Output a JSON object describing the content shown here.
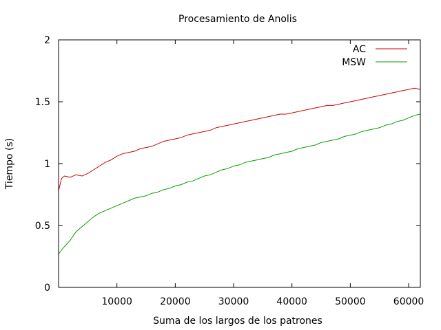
{
  "chart_data": {
    "type": "line",
    "title": "Procesamiento de Anolis",
    "xlabel": "Suma de los largos de los patrones",
    "ylabel": "Tiempo (s)",
    "xlim": [
      0,
      62000
    ],
    "ylim": [
      0,
      2
    ],
    "x_ticks": [
      10000,
      20000,
      30000,
      40000,
      50000,
      60000
    ],
    "x_tick_labels": [
      "10000",
      "20000",
      "30000",
      "40000",
      "50000",
      "60000"
    ],
    "y_ticks": [
      0,
      0.5,
      1,
      1.5,
      2
    ],
    "y_tick_labels": [
      "0",
      "0.5",
      "1",
      "1.5",
      "2"
    ],
    "grid": false,
    "legend": "top-right",
    "series": [
      {
        "name": "AC",
        "color": "#cc0000",
        "x": [
          0,
          500,
          1000,
          2000,
          3000,
          4000,
          5000,
          6000,
          7000,
          8000,
          9000,
          10000,
          11000,
          12000,
          13000,
          14000,
          15000,
          16000,
          17000,
          18000,
          19000,
          20000,
          21000,
          22000,
          23000,
          24000,
          25000,
          26000,
          27000,
          28000,
          29000,
          30000,
          31000,
          32000,
          33000,
          34000,
          35000,
          36000,
          37000,
          38000,
          39000,
          40000,
          41000,
          42000,
          43000,
          44000,
          45000,
          46000,
          47000,
          48000,
          49000,
          50000,
          51000,
          52000,
          53000,
          54000,
          55000,
          56000,
          57000,
          58000,
          59000,
          60000,
          61000,
          62000
        ],
        "values": [
          0.78,
          0.88,
          0.9,
          0.89,
          0.91,
          0.9,
          0.92,
          0.95,
          0.98,
          1.01,
          1.03,
          1.06,
          1.08,
          1.09,
          1.1,
          1.12,
          1.13,
          1.14,
          1.16,
          1.18,
          1.19,
          1.2,
          1.21,
          1.23,
          1.24,
          1.25,
          1.26,
          1.27,
          1.29,
          1.3,
          1.31,
          1.32,
          1.33,
          1.34,
          1.35,
          1.36,
          1.37,
          1.38,
          1.39,
          1.4,
          1.4,
          1.41,
          1.42,
          1.43,
          1.44,
          1.45,
          1.46,
          1.47,
          1.47,
          1.48,
          1.49,
          1.5,
          1.51,
          1.52,
          1.53,
          1.54,
          1.55,
          1.56,
          1.57,
          1.58,
          1.59,
          1.6,
          1.61,
          1.6
        ]
      },
      {
        "name": "MSW",
        "color": "#00a000",
        "x": [
          0,
          500,
          1000,
          2000,
          3000,
          4000,
          5000,
          6000,
          7000,
          8000,
          9000,
          10000,
          11000,
          12000,
          13000,
          14000,
          15000,
          16000,
          17000,
          18000,
          19000,
          20000,
          21000,
          22000,
          23000,
          24000,
          25000,
          26000,
          27000,
          28000,
          29000,
          30000,
          31000,
          32000,
          33000,
          34000,
          35000,
          36000,
          37000,
          38000,
          39000,
          40000,
          41000,
          42000,
          43000,
          44000,
          45000,
          46000,
          47000,
          48000,
          49000,
          50000,
          51000,
          52000,
          53000,
          54000,
          55000,
          56000,
          57000,
          58000,
          59000,
          60000,
          61000,
          62000
        ],
        "values": [
          0.27,
          0.3,
          0.33,
          0.38,
          0.45,
          0.49,
          0.53,
          0.57,
          0.6,
          0.62,
          0.64,
          0.66,
          0.68,
          0.7,
          0.72,
          0.73,
          0.74,
          0.76,
          0.77,
          0.79,
          0.8,
          0.82,
          0.83,
          0.85,
          0.86,
          0.88,
          0.9,
          0.91,
          0.93,
          0.95,
          0.96,
          0.98,
          0.99,
          1.01,
          1.02,
          1.03,
          1.04,
          1.05,
          1.07,
          1.08,
          1.09,
          1.1,
          1.12,
          1.13,
          1.14,
          1.15,
          1.17,
          1.18,
          1.19,
          1.2,
          1.22,
          1.23,
          1.24,
          1.26,
          1.27,
          1.28,
          1.29,
          1.31,
          1.32,
          1.34,
          1.35,
          1.37,
          1.39,
          1.4
        ]
      }
    ]
  }
}
